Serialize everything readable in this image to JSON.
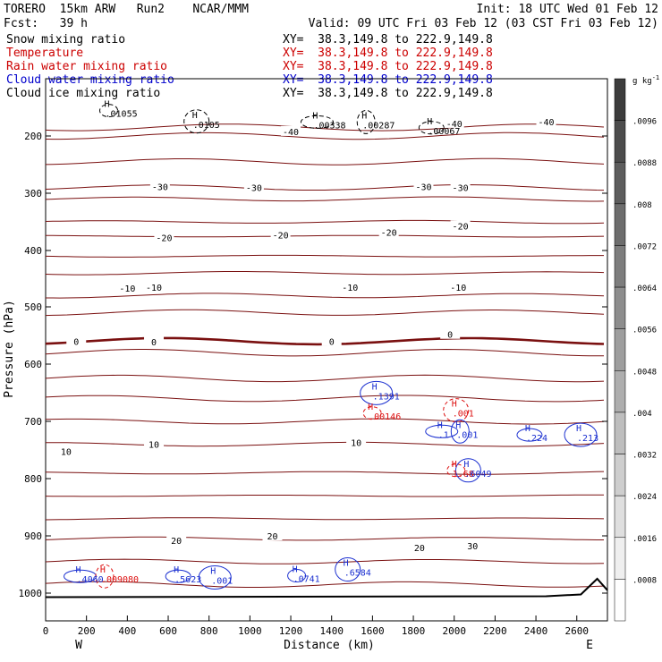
{
  "header": {
    "model": "TORERO  15km ARW   Run2    NCAR/MMM",
    "init": "Init: 18 UTC Wed 01 Feb 12",
    "fcst": "Fcst:   39 h",
    "valid": "Valid: 09 UTC Fri 03 Feb 12 (03 CST Fri 03 Feb 12)"
  },
  "fields": [
    {
      "name": "Snow mixing ratio",
      "xy": "XY=  38.3,149.8 to 222.9,149.8",
      "color": "#000000"
    },
    {
      "name": "Temperature",
      "xy": "XY=  38.3,149.8 to 222.9,149.8",
      "color": "#cc0000"
    },
    {
      "name": "Rain water mixing ratio",
      "xy": "XY=  38.3,149.8 to 222.9,149.8",
      "color": "#cc0000"
    },
    {
      "name": "Cloud water mixing ratio",
      "xy": "XY=  38.3,149.8 to 222.9,149.8",
      "color": "#0000cc"
    },
    {
      "name": "Cloud ice mixing ratio",
      "xy": "XY=  38.3,149.8 to 222.9,149.8",
      "color": "#000000"
    }
  ],
  "colors": {
    "temperature": "#7a1010",
    "snow": "#000000",
    "cloud_water": "#1a2fd0",
    "rain": "#dd1111",
    "terrain": "#000000"
  },
  "chart_data": {
    "type": "contour",
    "xlabel": "Distance (km)",
    "ylabel": "Pressure (hPa)",
    "xlim": [
      0,
      2750
    ],
    "ylim": [
      100,
      1050
    ],
    "x_ticks": [
      0,
      200,
      400,
      600,
      800,
      1000,
      1200,
      1400,
      1600,
      1800,
      2000,
      2200,
      2400,
      2600
    ],
    "y_ticks": [
      200,
      300,
      400,
      500,
      600,
      700,
      800,
      900,
      1000
    ],
    "x_ends": {
      "left": "W",
      "right": "E"
    },
    "colorbar": {
      "unit": "g kg",
      "unit_exp": "-1",
      "ticks": [
        ".0096",
        ".0088",
        ".008",
        ".0072",
        ".0064",
        ".0056",
        ".0048",
        ".004",
        ".0032",
        ".0024",
        ".0016",
        ".0008"
      ]
    },
    "temperature_contours": [
      {
        "level": -40,
        "p": 185
      },
      {
        "level": -40,
        "p": 200
      },
      {
        "level": -40,
        "p": 245
      },
      {
        "level": -30,
        "p": 290
      },
      {
        "level": -30,
        "p": 310
      },
      {
        "level": -20,
        "p": 350
      },
      {
        "level": -20,
        "p": 375
      },
      {
        "level": -10,
        "p": 410
      },
      {
        "level": -10,
        "p": 440
      },
      {
        "level": -10,
        "p": 480
      },
      {
        "level": -10,
        "p": 510
      },
      {
        "level": 0,
        "p": 560,
        "bold": true
      },
      {
        "level": 0,
        "p": 580
      },
      {
        "level": 10,
        "p": 625
      },
      {
        "level": 10,
        "p": 660
      },
      {
        "level": 10,
        "p": 700
      },
      {
        "level": 10,
        "p": 740
      },
      {
        "level": 10,
        "p": 790
      },
      {
        "level": 10,
        "p": 830
      },
      {
        "level": 20,
        "p": 870
      },
      {
        "level": 20,
        "p": 905
      },
      {
        "level": 20,
        "p": 945
      },
      {
        "level": 30,
        "p": 985
      }
    ],
    "contour_labels": [
      {
        "text": "-40",
        "x": 1200,
        "p": 192
      },
      {
        "text": "-40",
        "x": 2000,
        "p": 178
      },
      {
        "text": "-40",
        "x": 2450,
        "p": 175
      },
      {
        "text": "-30",
        "x": 560,
        "p": 288
      },
      {
        "text": "-30",
        "x": 1020,
        "p": 290
      },
      {
        "text": "-30",
        "x": 1850,
        "p": 288
      },
      {
        "text": "-30",
        "x": 2030,
        "p": 290
      },
      {
        "text": "-20",
        "x": 580,
        "p": 377
      },
      {
        "text": "-20",
        "x": 1150,
        "p": 373
      },
      {
        "text": "-20",
        "x": 1680,
        "p": 368
      },
      {
        "text": "-20",
        "x": 2030,
        "p": 357
      },
      {
        "text": "-10",
        "x": 400,
        "p": 467
      },
      {
        "text": "-10",
        "x": 530,
        "p": 465
      },
      {
        "text": "-10",
        "x": 1490,
        "p": 465
      },
      {
        "text": "-10",
        "x": 2020,
        "p": 465
      },
      {
        "text": "0",
        "x": 150,
        "p": 560
      },
      {
        "text": "0",
        "x": 530,
        "p": 561
      },
      {
        "text": "0",
        "x": 1400,
        "p": 560
      },
      {
        "text": "0",
        "x": 1980,
        "p": 548
      },
      {
        "text": "10",
        "x": 100,
        "p": 752
      },
      {
        "text": "10",
        "x": 530,
        "p": 740
      },
      {
        "text": "10",
        "x": 1520,
        "p": 737
      },
      {
        "text": "20",
        "x": 640,
        "p": 908
      },
      {
        "text": "20",
        "x": 1110,
        "p": 900
      },
      {
        "text": "20",
        "x": 1830,
        "p": 920
      },
      {
        "text": "30",
        "x": 2090,
        "p": 917
      }
    ],
    "maxima": [
      {
        "field": "snow",
        "label": ".01055",
        "x": 300,
        "p": 165
      },
      {
        "field": "snow",
        "label": ".0105",
        "x": 730,
        "p": 184
      },
      {
        "field": "snow",
        "label": ".00338",
        "x": 1320,
        "p": 185
      },
      {
        "field": "snow",
        "label": ".00287",
        "x": 1560,
        "p": 185
      },
      {
        "field": "snow",
        "label": ".00067",
        "x": 1880,
        "p": 195
      },
      {
        "field": "cloud_water",
        "label": ".1391",
        "x": 1610,
        "p": 660
      },
      {
        "field": "rain",
        "label": ".00146",
        "x": 1590,
        "p": 695
      },
      {
        "field": "rain",
        "label": ".001",
        "x": 2000,
        "p": 690
      },
      {
        "field": "cloud_water",
        "label": ".1",
        "x": 1930,
        "p": 727
      },
      {
        "field": "cloud_water",
        "label": ".001",
        "x": 2020,
        "p": 727
      },
      {
        "field": "cloud_water",
        "label": ".224",
        "x": 2360,
        "p": 733
      },
      {
        "field": "cloud_water",
        "label": ".213",
        "x": 2610,
        "p": 733
      },
      {
        "field": "rain",
        "label": "1.68",
        "x": 2000,
        "p": 795
      },
      {
        "field": "cloud_water",
        "label": ".6049",
        "x": 2060,
        "p": 795
      },
      {
        "field": "cloud_water",
        "label": ".4060",
        "x": 160,
        "p": 980
      },
      {
        "field": "rain",
        "label": ".009080",
        "x": 280,
        "p": 980
      },
      {
        "field": "cloud_water",
        "label": ".5623",
        "x": 640,
        "p": 980
      },
      {
        "field": "cloud_water",
        "label": ".001",
        "x": 820,
        "p": 982
      },
      {
        "field": "cloud_water",
        "label": ".0741",
        "x": 1220,
        "p": 979
      },
      {
        "field": "cloud_water",
        "label": ".6584",
        "x": 1470,
        "p": 968
      }
    ]
  }
}
